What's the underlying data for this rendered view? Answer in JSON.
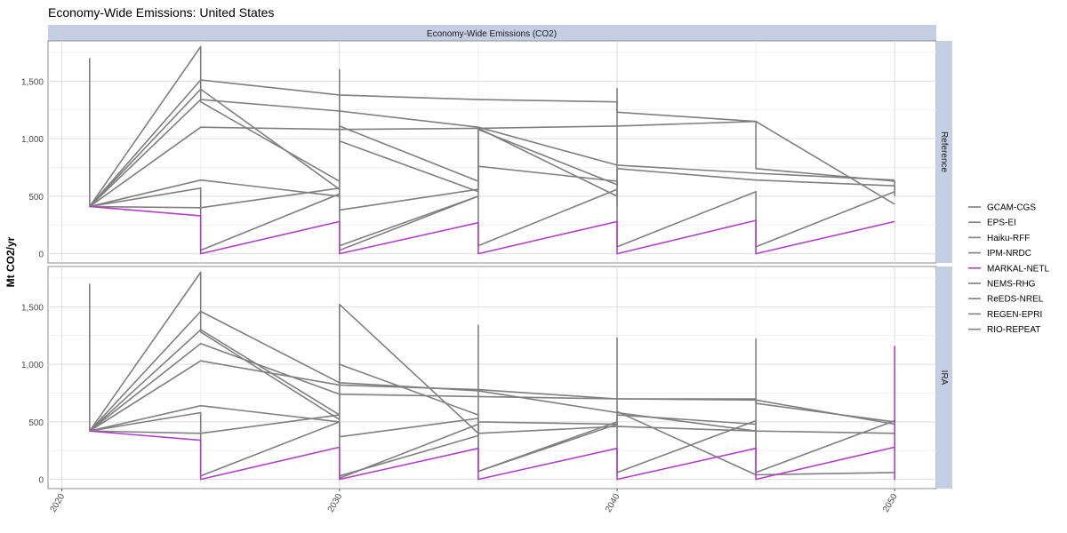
{
  "chart_data": {
    "type": "line",
    "title": "Economy-Wide Emissions: United States",
    "facet_title": "Economy-Wide Emissions (CO2)",
    "ylabel": "Mt CO2/yr",
    "xlabel": "",
    "x_ticks": [
      2020,
      2030,
      2040,
      2050
    ],
    "x_tick_labels": [
      "2020",
      "2030",
      "2040",
      "2050"
    ],
    "xlim": [
      2019.5,
      2051.5
    ],
    "y_ticks": [
      0,
      500,
      1000,
      1500
    ],
    "y_tick_labels": [
      "0",
      "500",
      "1,000",
      "1,500"
    ],
    "ylim": [
      -80,
      1850
    ],
    "grid": true,
    "legend_position": "right",
    "highlight": "MARKAL-NETL",
    "colors": {
      "default": "#7f7f7f",
      "highlight": "#b13fc8",
      "strip_bg": "#c5cfe3",
      "panel_border": "#8c8c8c",
      "grid": "#dedede"
    },
    "series_names": [
      "GCAM-CGS",
      "EPS-EI",
      "Haiku-RFF",
      "IPM-NRDC",
      "MARKAL-NETL",
      "NEMS-RHG",
      "ReEDS-NREL",
      "REGEN-EPRI",
      "RIO-REPEAT"
    ],
    "panels": [
      {
        "name": "Reference",
        "series": [
          {
            "name": "GCAM-CGS",
            "points": [
              [
                2021,
                1700
              ],
              [
                2021,
                410
              ],
              [
                2025,
                1510
              ],
              [
                2030,
                1380
              ],
              [
                2035,
                1340
              ],
              [
                2040,
                1320
              ],
              [
                2040,
                1230
              ],
              [
                2045,
                1150
              ],
              [
                2045,
                1150
              ],
              [
                2050,
                430
              ]
            ]
          },
          {
            "name": "EPS-EI",
            "points": [
              [
                2021,
                410
              ],
              [
                2025,
                1430
              ],
              [
                2030,
                560
              ],
              [
                2030,
                980
              ],
              [
                2035,
                540
              ]
            ]
          },
          {
            "name": "Haiku-RFF",
            "points": [
              [
                2021,
                410
              ],
              [
                2025,
                1340
              ],
              [
                2030,
                1240
              ],
              [
                2035,
                1100
              ],
              [
                2040,
                770
              ],
              [
                2045,
                700
              ],
              [
                2050,
                640
              ]
            ]
          },
          {
            "name": "IPM-NRDC",
            "points": [
              [
                2021,
                410
              ],
              [
                2025,
                1800
              ],
              [
                2025,
                1320
              ],
              [
                2030,
                630
              ],
              [
                2030,
                1110
              ],
              [
                2035,
                630
              ],
              [
                2035,
                1080
              ],
              [
                2040,
                600
              ],
              [
                2040,
                740
              ],
              [
                2045,
                640
              ],
              [
                2045,
                640
              ],
              [
                2050,
                590
              ]
            ]
          },
          {
            "name": "MARKAL-NETL",
            "points": [
              [
                2021,
                410
              ],
              [
                2025,
                330
              ],
              [
                2025,
                0
              ],
              [
                2030,
                280
              ],
              [
                2030,
                0
              ],
              [
                2035,
                270
              ],
              [
                2035,
                0
              ],
              [
                2040,
                280
              ],
              [
                2040,
                0
              ],
              [
                2045,
                290
              ],
              [
                2045,
                0
              ],
              [
                2050,
                280
              ]
            ]
          },
          {
            "name": "NEMS-RHG",
            "points": [
              [
                2021,
                410
              ],
              [
                2025,
                1100
              ],
              [
                2030,
                1080
              ],
              [
                2035,
                1090
              ],
              [
                2040,
                1110
              ],
              [
                2045,
                1150
              ],
              [
                2045,
                740
              ],
              [
                2050,
                630
              ],
              [
                2050,
                500
              ]
            ]
          },
          {
            "name": "ReEDS-NREL",
            "points": [
              [
                2021,
                410
              ],
              [
                2025,
                400
              ],
              [
                2030,
                570
              ],
              [
                2030,
                380
              ],
              [
                2035,
                560
              ],
              [
                2035,
                760
              ],
              [
                2040,
                630
              ],
              [
                2040,
                60
              ],
              [
                2045,
                540
              ],
              [
                2045,
                60
              ],
              [
                2050,
                540
              ]
            ]
          },
          {
            "name": "REGEN-EPRI",
            "points": [
              [
                2021,
                410
              ],
              [
                2025,
                640
              ],
              [
                2030,
                500
              ],
              [
                2030,
                30
              ],
              [
                2035,
                500
              ],
              [
                2035,
                70
              ],
              [
                2040,
                560
              ],
              [
                2040,
                420
              ],
              [
                2040,
                1440
              ]
            ]
          },
          {
            "name": "RIO-REPEAT",
            "points": [
              [
                2021,
                410
              ],
              [
                2025,
                570
              ],
              [
                2025,
                30
              ],
              [
                2030,
                520
              ],
              [
                2030,
                1600
              ],
              [
                2030,
                70
              ],
              [
                2035,
                500
              ],
              [
                2035,
                1090
              ],
              [
                2040,
                500
              ]
            ]
          }
        ]
      },
      {
        "name": "IRA",
        "series": [
          {
            "name": "GCAM-CGS",
            "points": [
              [
                2021,
                1700
              ],
              [
                2021,
                420
              ],
              [
                2025,
                1460
              ],
              [
                2030,
                840
              ],
              [
                2035,
                770
              ],
              [
                2040,
                580
              ],
              [
                2045,
                420
              ],
              [
                2050,
                400
              ]
            ]
          },
          {
            "name": "EPS-EI",
            "points": [
              [
                2021,
                420
              ],
              [
                2025,
                1300
              ],
              [
                2030,
                560
              ],
              [
                2030,
                1000
              ],
              [
                2035,
                560
              ]
            ]
          },
          {
            "name": "Haiku-RFF",
            "points": [
              [
                2021,
                420
              ],
              [
                2025,
                1180
              ],
              [
                2030,
                740
              ],
              [
                2035,
                720
              ],
              [
                2040,
                700
              ],
              [
                2045,
                690
              ],
              [
                2050,
                480
              ]
            ]
          },
          {
            "name": "IPM-NRDC",
            "points": [
              [
                2021,
                420
              ],
              [
                2025,
                1800
              ],
              [
                2025,
                1280
              ],
              [
                2030,
                520
              ],
              [
                2030,
                1520
              ],
              [
                2035,
                400
              ],
              [
                2035,
                1340
              ],
              [
                2035,
                500
              ],
              [
                2040,
                480
              ],
              [
                2040,
                590
              ],
              [
                2045,
                40
              ],
              [
                2050,
                60
              ]
            ]
          },
          {
            "name": "MARKAL-NETL",
            "points": [
              [
                2021,
                420
              ],
              [
                2025,
                340
              ],
              [
                2025,
                0
              ],
              [
                2030,
                280
              ],
              [
                2030,
                0
              ],
              [
                2035,
                270
              ],
              [
                2035,
                0
              ],
              [
                2040,
                270
              ],
              [
                2040,
                0
              ],
              [
                2045,
                270
              ],
              [
                2045,
                0
              ],
              [
                2050,
                280
              ],
              [
                2050,
                0
              ],
              [
                2050,
                1160
              ]
            ]
          },
          {
            "name": "NEMS-RHG",
            "points": [
              [
                2021,
                420
              ],
              [
                2025,
                1030
              ],
              [
                2030,
                820
              ],
              [
                2035,
                780
              ],
              [
                2040,
                700
              ],
              [
                2045,
                700
              ],
              [
                2045,
                660
              ],
              [
                2050,
                500
              ]
            ]
          },
          {
            "name": "ReEDS-NREL",
            "points": [
              [
                2021,
                420
              ],
              [
                2025,
                400
              ],
              [
                2030,
                560
              ],
              [
                2030,
                370
              ],
              [
                2035,
                530
              ],
              [
                2035,
                70
              ],
              [
                2040,
                500
              ],
              [
                2040,
                60
              ],
              [
                2045,
                510
              ],
              [
                2045,
                60
              ],
              [
                2050,
                510
              ]
            ]
          },
          {
            "name": "REGEN-EPRI",
            "points": [
              [
                2021,
                420
              ],
              [
                2025,
                640
              ],
              [
                2030,
                500
              ],
              [
                2030,
                10
              ],
              [
                2035,
                480
              ],
              [
                2035,
                70
              ],
              [
                2040,
                480
              ],
              [
                2040,
                1230
              ],
              [
                2040,
                560
              ],
              [
                2045,
                480
              ]
            ]
          },
          {
            "name": "RIO-REPEAT",
            "points": [
              [
                2021,
                420
              ],
              [
                2025,
                580
              ],
              [
                2025,
                30
              ],
              [
                2030,
                500
              ],
              [
                2030,
                30
              ],
              [
                2035,
                380
              ],
              [
                2035,
                400
              ],
              [
                2040,
                460
              ],
              [
                2045,
                420
              ],
              [
                2045,
                1220
              ],
              [
                2045,
                40
              ]
            ]
          }
        ]
      }
    ]
  }
}
